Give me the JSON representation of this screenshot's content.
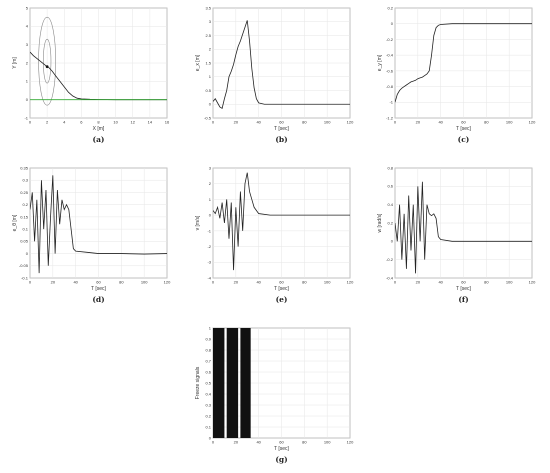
{
  "chart_data": [
    {
      "id": "a",
      "caption": "(a)",
      "type": "line",
      "xlabel": "X [m]",
      "ylabel": "Y [m]",
      "xlim": [
        0,
        16
      ],
      "ylim": [
        -1,
        5
      ],
      "xticks": [
        0,
        2,
        4,
        6,
        8,
        10,
        12,
        14,
        16
      ],
      "yticks": [
        -1,
        0,
        1,
        2,
        3,
        4,
        5
      ],
      "series": [
        {
          "color": "#222222",
          "x": [
            0,
            0.4,
            0.8,
            1.2,
            1.6,
            2.0,
            2.2,
            2.6,
            3.0,
            3.5,
            4.0,
            4.5,
            5.0,
            5.5,
            6.0,
            7.0,
            8.0,
            10.0,
            12.0,
            14.0,
            16.0
          ],
          "y": [
            2.6,
            2.4,
            2.25,
            2.1,
            1.95,
            1.8,
            1.75,
            1.55,
            1.3,
            1.0,
            0.7,
            0.4,
            0.2,
            0.08,
            0.04,
            0.02,
            0.01,
            0.0,
            0.0,
            0.0,
            0.0
          ]
        },
        {
          "color": "#33aa33",
          "x": [
            0,
            16
          ],
          "y": [
            0,
            0
          ]
        }
      ],
      "ellipses": [
        {
          "cx": 2.0,
          "cy": 2.1,
          "rx": 1.0,
          "ry": 2.4
        },
        {
          "cx": 2.0,
          "cy": 2.1,
          "rx": 0.45,
          "ry": 1.2
        }
      ],
      "marker": {
        "x": 2.0,
        "y": 1.8
      }
    },
    {
      "id": "b",
      "caption": "(b)",
      "type": "line",
      "xlabel": "T [sec]",
      "ylabel": "e_x [m]",
      "xlim": [
        0,
        120
      ],
      "ylim": [
        -0.5,
        3.5
      ],
      "xticks": [
        0,
        20,
        40,
        60,
        80,
        100,
        120
      ],
      "yticks": [
        -0.5,
        0,
        0.5,
        1,
        1.5,
        2,
        2.5,
        3,
        3.5
      ],
      "series": [
        {
          "color": "#222222",
          "x": [
            0,
            2,
            4,
            6,
            8,
            10,
            12,
            14,
            16,
            18,
            20,
            22,
            24,
            26,
            28,
            30,
            32,
            34,
            36,
            38,
            40,
            45,
            60,
            80,
            100,
            120
          ],
          "y": [
            0.1,
            0.2,
            0.05,
            -0.1,
            -0.15,
            0.2,
            0.5,
            1.0,
            1.2,
            1.45,
            1.8,
            2.1,
            2.3,
            2.55,
            2.8,
            3.05,
            2.3,
            1.3,
            0.6,
            0.2,
            0.05,
            0.0,
            0.0,
            0.0,
            0.0,
            0.0
          ]
        }
      ]
    },
    {
      "id": "c",
      "caption": "(c)",
      "type": "line",
      "xlabel": "T [sec]",
      "ylabel": "e_y [m]",
      "xlim": [
        0,
        120
      ],
      "ylim": [
        -1.2,
        0.2
      ],
      "xticks": [
        0,
        20,
        40,
        60,
        80,
        100,
        120
      ],
      "yticks": [
        -1.2,
        -1,
        -0.8,
        -0.6,
        -0.4,
        -0.2,
        0,
        0.2
      ],
      "series": [
        {
          "color": "#222222",
          "x": [
            0,
            2,
            4,
            6,
            8,
            10,
            12,
            14,
            16,
            18,
            20,
            22,
            24,
            26,
            28,
            30,
            32,
            34,
            36,
            38,
            40,
            50,
            60,
            80,
            100,
            120
          ],
          "y": [
            -1.0,
            -0.9,
            -0.85,
            -0.82,
            -0.8,
            -0.78,
            -0.76,
            -0.74,
            -0.73,
            -0.72,
            -0.7,
            -0.69,
            -0.68,
            -0.66,
            -0.64,
            -0.6,
            -0.4,
            -0.15,
            -0.05,
            -0.02,
            -0.01,
            0.0,
            0.0,
            0.0,
            0.0,
            0.0
          ]
        }
      ]
    },
    {
      "id": "d",
      "caption": "(d)",
      "type": "line",
      "xlabel": "T [sec]",
      "ylabel": "e_θ [m]",
      "xlim": [
        0,
        120
      ],
      "ylim": [
        -0.1,
        0.35
      ],
      "xticks": [
        0,
        20,
        40,
        60,
        80,
        100,
        120
      ],
      "yticks": [
        -0.1,
        -0.05,
        0,
        0.05,
        0.1,
        0.15,
        0.2,
        0.25,
        0.3,
        0.35
      ],
      "series": [
        {
          "color": "#222222",
          "x": [
            0,
            2,
            4,
            6,
            8,
            10,
            12,
            14,
            16,
            18,
            20,
            22,
            24,
            26,
            28,
            30,
            32,
            34,
            36,
            38,
            40,
            50,
            60,
            80,
            100,
            120
          ],
          "y": [
            0.18,
            0.25,
            0.05,
            0.22,
            -0.08,
            0.3,
            0.1,
            0.26,
            -0.05,
            0.15,
            0.32,
            0.0,
            0.26,
            0.12,
            0.22,
            0.18,
            0.2,
            0.18,
            0.1,
            0.02,
            0.01,
            0.005,
            0.0,
            0.0,
            -0.002,
            0.0
          ]
        }
      ]
    },
    {
      "id": "e",
      "caption": "(e)",
      "type": "line",
      "xlabel": "T [sec]",
      "ylabel": "v [m/s]",
      "xlim": [
        0,
        120
      ],
      "ylim": [
        -4,
        3
      ],
      "xticks": [
        0,
        20,
        40,
        60,
        80,
        100,
        120
      ],
      "yticks": [
        -4,
        -3,
        -2,
        -1,
        0,
        1,
        2,
        3
      ],
      "series": [
        {
          "color": "#222222",
          "x": [
            0,
            2,
            4,
            6,
            8,
            10,
            12,
            14,
            16,
            18,
            20,
            22,
            24,
            26,
            28,
            30,
            32,
            34,
            36,
            40,
            50,
            60,
            80,
            100,
            120
          ],
          "y": [
            0.3,
            0.1,
            0.5,
            -0.2,
            0.8,
            -0.5,
            1.0,
            -1.5,
            0.8,
            -3.5,
            0.5,
            -2.0,
            1.5,
            -1.0,
            2.0,
            2.7,
            1.5,
            1.0,
            0.5,
            0.1,
            0.0,
            0.0,
            0.0,
            0.0,
            0.0
          ]
        }
      ]
    },
    {
      "id": "f",
      "caption": "(f)",
      "type": "line",
      "xlabel": "T [sec]",
      "ylabel": "w [rad/s]",
      "xlim": [
        0,
        120
      ],
      "ylim": [
        -0.4,
        0.8
      ],
      "xticks": [
        0,
        20,
        40,
        60,
        80,
        100,
        120
      ],
      "yticks": [
        -0.4,
        -0.2,
        0,
        0.2,
        0.4,
        0.6,
        0.8
      ],
      "series": [
        {
          "color": "#222222",
          "x": [
            0,
            2,
            4,
            6,
            8,
            10,
            12,
            14,
            16,
            18,
            20,
            22,
            24,
            26,
            28,
            30,
            32,
            34,
            36,
            38,
            40,
            50,
            60,
            80,
            100,
            120
          ],
          "y": [
            0.2,
            0.0,
            0.4,
            -0.2,
            0.3,
            -0.3,
            0.5,
            -0.1,
            0.4,
            -0.35,
            0.6,
            0.0,
            0.65,
            -0.2,
            0.4,
            0.3,
            0.28,
            0.3,
            0.25,
            0.05,
            0.02,
            0.0,
            0.0,
            0.0,
            0.0,
            0.0
          ]
        }
      ]
    },
    {
      "id": "g",
      "caption": "(g)",
      "type": "bar",
      "xlabel": "T [sec]",
      "ylabel": "Freeze signals",
      "xlim": [
        0,
        120
      ],
      "ylim": [
        0,
        1
      ],
      "xticks": [
        0,
        20,
        40,
        60,
        80,
        100,
        120
      ],
      "yticks": [
        0,
        0.1,
        0.2,
        0.3,
        0.4,
        0.5,
        0.6,
        0.7,
        0.8,
        0.9,
        1
      ],
      "blocks": [
        [
          0,
          10
        ],
        [
          12,
          22
        ],
        [
          24,
          33
        ]
      ]
    }
  ]
}
